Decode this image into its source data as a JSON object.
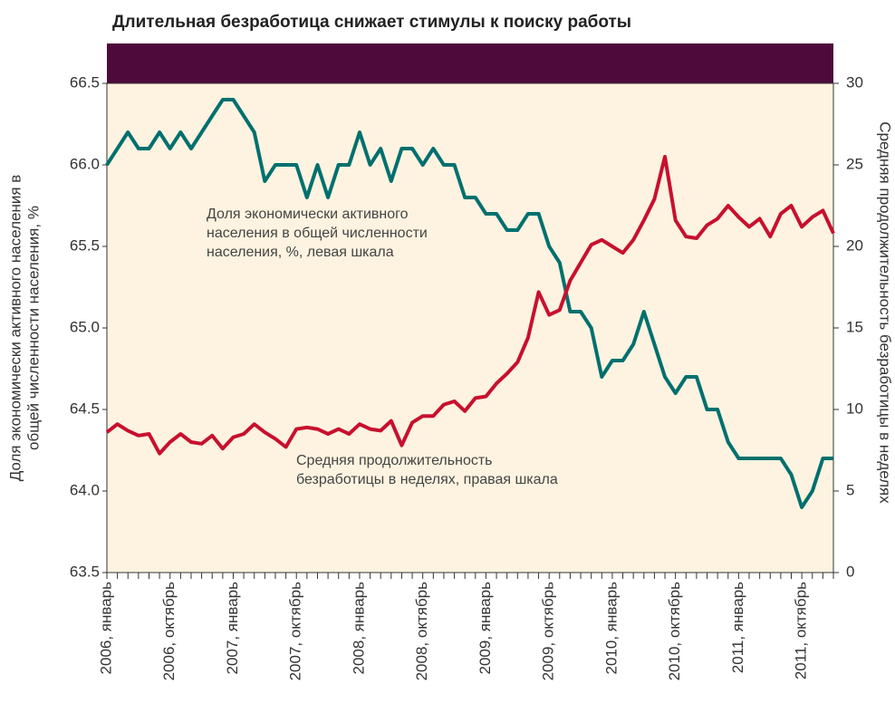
{
  "chart_data": {
    "type": "line",
    "title": "Длительная безработица снижает стимулы к поиску работы",
    "y_label_lines": [
      "Доля экономически активного населения в",
      "общей численности населения, %"
    ],
    "y2_label": "Средняя продолжительность безработицы в неделях",
    "categories": [
      "2006, январь",
      null,
      null,
      null,
      null,
      null,
      "2006, октябрь",
      null,
      null,
      null,
      null,
      null,
      "2007, январь",
      null,
      null,
      null,
      null,
      null,
      "2007, октябрь",
      null,
      null,
      null,
      null,
      null,
      "2008, январь",
      null,
      null,
      null,
      null,
      null,
      "2008, октябрь",
      null,
      null,
      null,
      null,
      null,
      "2009, январь",
      null,
      null,
      null,
      null,
      null,
      "2009, октябрь",
      null,
      null,
      null,
      null,
      null,
      "2010, январь",
      null,
      null,
      null,
      null,
      null,
      "2010, октябрь",
      null,
      null,
      null,
      null,
      null,
      "2011, январь",
      null,
      null,
      null,
      null,
      null,
      "2011, октябрь",
      null,
      null,
      null
    ],
    "ylim": [
      63.5,
      66.5
    ],
    "yticks": [
      63.5,
      {
        "value": 64,
        "label": "64.0"
      },
      64.5,
      {
        "value": 65,
        "label": "65.0"
      },
      65.5,
      {
        "value": 66,
        "label": "66.0"
      },
      66.5
    ],
    "y2lim": [
      0,
      30
    ],
    "y2ticks": [
      0,
      5,
      10,
      15,
      20,
      25,
      30
    ],
    "series": [
      {
        "label_lines": [
          "Доля экономически активного",
          "населения в общей численности",
          "населения, %, левая шкала"
        ],
        "color": "#00706e",
        "values": [
          66.0,
          66.1,
          66.2,
          66.1,
          66.1,
          66.2,
          66.1,
          66.2,
          66.1,
          66.2,
          66.3,
          66.4,
          66.4,
          66.3,
          66.2,
          65.9,
          66.0,
          66.0,
          66.0,
          65.8,
          66.0,
          65.8,
          66.0,
          66.0,
          66.2,
          66.0,
          66.1,
          65.9,
          66.1,
          66.1,
          66.0,
          66.1,
          66.0,
          66.0,
          65.8,
          65.8,
          65.7,
          65.7,
          65.6,
          65.6,
          65.7,
          65.7,
          65.5,
          65.4,
          65.1,
          65.1,
          65.0,
          64.7,
          64.8,
          64.8,
          64.9,
          65.1,
          64.9,
          64.7,
          64.6,
          64.7,
          64.7,
          64.5,
          64.5,
          64.3,
          64.2,
          64.2,
          64.2,
          64.2,
          64.2,
          64.1,
          63.9,
          64.0,
          64.2,
          64.2
        ]
      },
      {
        "label_lines": [
          "Средняя продолжительность",
          "безработицы в неделях, правая шкала"
        ],
        "color": "#c8102e",
        "axis": "y2",
        "values": [
          8.6,
          9.1,
          8.7,
          8.4,
          8.5,
          7.3,
          8.0,
          8.5,
          8.0,
          7.9,
          8.4,
          7.6,
          8.3,
          8.5,
          9.1,
          8.6,
          8.2,
          7.7,
          8.8,
          8.9,
          8.8,
          8.5,
          8.8,
          8.5,
          9.1,
          8.8,
          8.7,
          9.3,
          7.8,
          9.2,
          9.6,
          9.6,
          10.3,
          10.5,
          9.9,
          10.7,
          10.8,
          11.6,
          12.2,
          12.9,
          14.4,
          17.2,
          15.8,
          16.1,
          17.9,
          19.0,
          20.1,
          20.4,
          20.0,
          19.6,
          20.4,
          21.6,
          22.9,
          25.5,
          21.6,
          20.6,
          20.5,
          21.3,
          21.7,
          22.5,
          21.8,
          21.2,
          21.7,
          20.6,
          22.0,
          22.5,
          21.2,
          21.8,
          22.2,
          20.8
        ]
      }
    ]
  }
}
